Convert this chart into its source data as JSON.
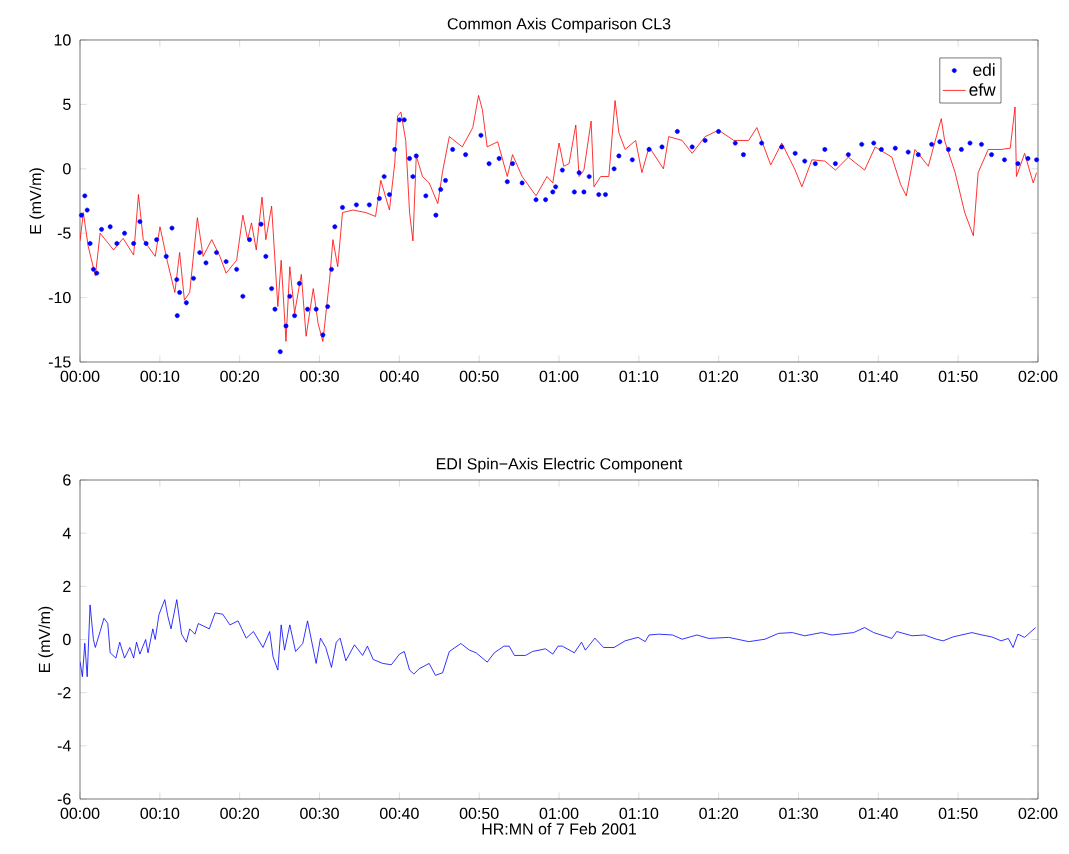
{
  "chart_data": [
    {
      "type": "scatter",
      "title": "Common Axis Comparison   CL3",
      "ylabel": "E  (mV/m)",
      "legend": "top right",
      "line_style": "solid",
      "xlim": [
        0,
        2
      ],
      "ylim": [
        -15,
        10
      ],
      "yticks": [
        -15,
        -10,
        -5,
        0,
        5,
        10
      ],
      "xticks": [
        {
          "value": 0,
          "label": "00:00"
        },
        {
          "value": 0.1667,
          "label": "00:10"
        },
        {
          "value": 0.3333,
          "label": "00:20"
        },
        {
          "value": 0.5,
          "label": "00:30"
        },
        {
          "value": 0.6667,
          "label": "00:40"
        },
        {
          "value": 0.8333,
          "label": "00:50"
        },
        {
          "value": 1,
          "label": "01:00"
        },
        {
          "value": 1.1667,
          "label": "01:10"
        },
        {
          "value": 1.3333,
          "label": "01:20"
        },
        {
          "value": 1.5,
          "label": "01:30"
        },
        {
          "value": 1.6667,
          "label": "01:40"
        },
        {
          "value": 1.8333,
          "label": "01:50"
        },
        {
          "value": 2,
          "label": "02:00"
        }
      ],
      "series": [
        {
          "name": "edi",
          "type": "scatter",
          "marker": "circle",
          "color": "#0000ff",
          "x": [
            0.003,
            0.01,
            0.015,
            0.021,
            0.028,
            0.035,
            0.045,
            0.063,
            0.077,
            0.093,
            0.112,
            0.125,
            0.138,
            0.16,
            0.18,
            0.192,
            0.202,
            0.203,
            0.208,
            0.222,
            0.237,
            0.25,
            0.263,
            0.285,
            0.305,
            0.327,
            0.34,
            0.354,
            0.378,
            0.388,
            0.4,
            0.407,
            0.418,
            0.43,
            0.438,
            0.448,
            0.458,
            0.475,
            0.493,
            0.507,
            0.517,
            0.525,
            0.532,
            0.548,
            0.577,
            0.604,
            0.625,
            0.635,
            0.646,
            0.657,
            0.667,
            0.677,
            0.688,
            0.695,
            0.702,
            0.722,
            0.743,
            0.753,
            0.763,
            0.778,
            0.805,
            0.837,
            0.854,
            0.875,
            0.892,
            0.903,
            0.923,
            0.952,
            0.972,
            0.987,
            0.993,
            1.007,
            1.032,
            1.042,
            1.052,
            1.063,
            1.083,
            1.097,
            1.115,
            1.125,
            1.153,
            1.188,
            1.215,
            1.247,
            1.278,
            1.305,
            1.333,
            1.368,
            1.385,
            1.423,
            1.465,
            1.493,
            1.513,
            1.535,
            1.555,
            1.577,
            1.604,
            1.632,
            1.657,
            1.673,
            1.702,
            1.729,
            1.75,
            1.778,
            1.795,
            1.813,
            1.84,
            1.858,
            1.882,
            1.903,
            1.93,
            1.958,
            1.979,
            1.997
          ],
          "values": [
            -3.6,
            -2.1,
            -3.2,
            -5.8,
            -7.8,
            -8.1,
            -4.7,
            -4.5,
            -5.8,
            -5.0,
            -5.8,
            -4.1,
            -5.8,
            -5.5,
            -6.8,
            -4.6,
            -8.6,
            -11.4,
            -9.6,
            -10.4,
            -8.5,
            -6.5,
            -7.3,
            -6.5,
            -7.2,
            -7.8,
            -9.9,
            -5.5,
            -4.3,
            -6.8,
            -9.3,
            -10.9,
            -14.2,
            -12.2,
            -9.9,
            -11.4,
            -8.9,
            -10.9,
            -10.9,
            -12.9,
            -10.7,
            -7.8,
            -4.5,
            -3.0,
            -2.8,
            -2.8,
            -2.3,
            -0.6,
            -2.0,
            1.5,
            3.8,
            3.8,
            0.8,
            -0.6,
            1.0,
            -2.1,
            -3.6,
            -1.6,
            -0.9,
            1.5,
            1.1,
            2.6,
            0.4,
            0.8,
            -1.0,
            0.4,
            -1.1,
            -2.4,
            -2.4,
            -1.8,
            -1.4,
            -0.1,
            -1.8,
            -0.3,
            -1.8,
            -0.6,
            -2.0,
            -2.0,
            0.0,
            1.0,
            0.7,
            1.5,
            1.7,
            2.9,
            1.7,
            2.2,
            2.9,
            2.0,
            1.1,
            2.0,
            1.7,
            1.2,
            0.6,
            0.4,
            1.5,
            0.4,
            1.1,
            1.9,
            2.0,
            1.5,
            1.6,
            1.3,
            1.1,
            1.9,
            2.1,
            1.5,
            1.5,
            2.0,
            1.9,
            1.1,
            0.7,
            0.4,
            0.8,
            0.7
          ]
        },
        {
          "name": "efw",
          "type": "line",
          "marker": "none",
          "color": "#ff0000",
          "x": [
            0,
            0.007,
            0.017,
            0.032,
            0.042,
            0.07,
            0.09,
            0.112,
            0.122,
            0.132,
            0.157,
            0.167,
            0.183,
            0.198,
            0.208,
            0.218,
            0.229,
            0.245,
            0.257,
            0.275,
            0.292,
            0.305,
            0.327,
            0.34,
            0.35,
            0.358,
            0.368,
            0.38,
            0.388,
            0.4,
            0.413,
            0.42,
            0.43,
            0.438,
            0.448,
            0.462,
            0.472,
            0.487,
            0.497,
            0.507,
            0.521,
            0.528,
            0.538,
            0.548,
            0.57,
            0.597,
            0.617,
            0.628,
            0.646,
            0.657,
            0.663,
            0.67,
            0.68,
            0.688,
            0.695,
            0.702,
            0.715,
            0.729,
            0.747,
            0.757,
            0.771,
            0.798,
            0.82,
            0.832,
            0.84,
            0.85,
            0.872,
            0.892,
            0.903,
            0.923,
            0.952,
            0.975,
            0.987,
            1.0,
            1.01,
            1.021,
            1.035,
            1.042,
            1.052,
            1.067,
            1.073,
            1.087,
            1.104,
            1.117,
            1.125,
            1.138,
            1.16,
            1.173,
            1.188,
            1.218,
            1.229,
            1.257,
            1.278,
            1.305,
            1.333,
            1.365,
            1.396,
            1.413,
            1.442,
            1.465,
            1.493,
            1.507,
            1.528,
            1.555,
            1.577,
            1.604,
            1.638,
            1.66,
            1.695,
            1.713,
            1.725,
            1.743,
            1.771,
            1.798,
            1.805,
            1.827,
            1.847,
            1.865,
            1.875,
            1.896,
            1.923,
            1.942,
            1.952,
            1.955,
            1.972,
            1.99,
            1.997
          ],
          "values": [
            -5.6,
            -3.4,
            -6.0,
            -8.3,
            -5.0,
            -6.3,
            -5.4,
            -6.7,
            -2.0,
            -5.5,
            -6.8,
            -4.5,
            -7.3,
            -9.6,
            -6.5,
            -10.2,
            -9.6,
            -3.8,
            -6.8,
            -5.5,
            -6.8,
            -8.1,
            -7.1,
            -3.6,
            -5.5,
            -4.2,
            -6.3,
            -2.2,
            -5.5,
            -2.9,
            -10.7,
            -7.1,
            -13.4,
            -7.6,
            -11.2,
            -8.2,
            -13.0,
            -9.3,
            -12.0,
            -13.4,
            -8.6,
            -5.5,
            -7.6,
            -3.4,
            -3.2,
            -3.4,
            -3.7,
            -0.9,
            -3.2,
            0.4,
            4.1,
            4.4,
            2.2,
            -3.4,
            -5.6,
            1.0,
            -0.6,
            -1.1,
            -2.7,
            -0.2,
            2.5,
            1.7,
            3.2,
            5.7,
            4.6,
            1.7,
            2.1,
            -0.6,
            1.1,
            -0.6,
            -2.1,
            -0.6,
            -1.1,
            2.0,
            0.2,
            0.4,
            3.4,
            -0.6,
            -0.1,
            3.7,
            -1.4,
            -0.6,
            -0.6,
            5.3,
            2.8,
            1.5,
            2.2,
            -0.3,
            1.7,
            0.0,
            2.5,
            2.2,
            1.2,
            2.5,
            3.0,
            2.2,
            2.2,
            3.2,
            0.3,
            2.0,
            -0.1,
            -1.4,
            0.7,
            0.6,
            -0.1,
            0.9,
            -0.1,
            1.7,
            0.9,
            -1.2,
            -2.1,
            1.5,
            0.2,
            3.9,
            2.2,
            -0.3,
            -3.4,
            -5.2,
            -0.3,
            1.5,
            1.5,
            1.6,
            4.8,
            -0.6,
            1.2,
            -1.1,
            -0.3
          ]
        }
      ]
    },
    {
      "type": "line",
      "title": "EDI Spin−Axis Electric Component",
      "xlabel": "HR:MN of 7 Feb 2001",
      "ylabel": "E  (mV/m)",
      "marker": "none",
      "line_style": "solid",
      "xlim": [
        0,
        2
      ],
      "ylim": [
        -6,
        6
      ],
      "yticks": [
        -6,
        -4,
        -2,
        0,
        2,
        4,
        6
      ],
      "xticks": [
        {
          "value": 0,
          "label": "00:00"
        },
        {
          "value": 0.1667,
          "label": "00:10"
        },
        {
          "value": 0.3333,
          "label": "00:20"
        },
        {
          "value": 0.5,
          "label": "00:30"
        },
        {
          "value": 0.6667,
          "label": "00:40"
        },
        {
          "value": 0.8333,
          "label": "00:50"
        },
        {
          "value": 1,
          "label": "01:00"
        },
        {
          "value": 1.1667,
          "label": "01:10"
        },
        {
          "value": 1.3333,
          "label": "01:20"
        },
        {
          "value": 1.5,
          "label": "01:30"
        },
        {
          "value": 1.6667,
          "label": "01:40"
        },
        {
          "value": 1.8333,
          "label": "01:50"
        },
        {
          "value": 2,
          "label": "02:00"
        }
      ],
      "series": [
        {
          "color": "#0000ff",
          "x": [
            0,
            0.005,
            0.01,
            0.015,
            0.021,
            0.028,
            0.032,
            0.042,
            0.05,
            0.058,
            0.063,
            0.075,
            0.083,
            0.093,
            0.104,
            0.112,
            0.118,
            0.125,
            0.137,
            0.142,
            0.152,
            0.157,
            0.165,
            0.177,
            0.183,
            0.19,
            0.202,
            0.212,
            0.222,
            0.229,
            0.24,
            0.247,
            0.27,
            0.282,
            0.298,
            0.313,
            0.33,
            0.347,
            0.362,
            0.382,
            0.396,
            0.403,
            0.413,
            0.42,
            0.427,
            0.438,
            0.45,
            0.465,
            0.475,
            0.493,
            0.502,
            0.513,
            0.525,
            0.535,
            0.543,
            0.555,
            0.573,
            0.59,
            0.6,
            0.612,
            0.632,
            0.65,
            0.667,
            0.677,
            0.688,
            0.697,
            0.708,
            0.729,
            0.742,
            0.757,
            0.771,
            0.795,
            0.813,
            0.827,
            0.85,
            0.865,
            0.885,
            0.896,
            0.907,
            0.93,
            0.945,
            0.972,
            0.987,
            0.998,
            1.007,
            1.032,
            1.047,
            1.055,
            1.075,
            1.093,
            1.115,
            1.138,
            1.165,
            1.18,
            1.188,
            1.208,
            1.237,
            1.257,
            1.288,
            1.313,
            1.354,
            1.396,
            1.43,
            1.458,
            1.487,
            1.513,
            1.548,
            1.57,
            1.615,
            1.638,
            1.657,
            1.695,
            1.705,
            1.737,
            1.763,
            1.788,
            1.802,
            1.823,
            1.862,
            1.883,
            1.903,
            1.923,
            1.938,
            1.948,
            1.958,
            1.972,
            1.995
          ],
          "values": [
            -0.83,
            -1.4,
            -0.14,
            -1.4,
            1.3,
            0,
            -0.3,
            0.3,
            0.8,
            0.6,
            -0.5,
            -0.7,
            -0.1,
            -0.7,
            -0.3,
            -0.7,
            -0.1,
            -0.55,
            0,
            -0.5,
            0.4,
            0,
            0.95,
            1.5,
            0.9,
            0.4,
            1.5,
            0.2,
            -0.1,
            0.4,
            0.2,
            0.6,
            0.4,
            1.0,
            0.95,
            0.55,
            0.7,
            0.05,
            0.3,
            -0.3,
            0.3,
            -0.65,
            -1.15,
            0.55,
            -0.4,
            0.55,
            -0.45,
            -0.15,
            0.7,
            -0.9,
            0.05,
            -0.3,
            -1.05,
            -0.1,
            0.05,
            -0.8,
            -0.2,
            -0.6,
            -0.25,
            -0.75,
            -0.9,
            -0.95,
            -0.55,
            -0.45,
            -1.15,
            -1.3,
            -1.1,
            -0.9,
            -1.35,
            -1.25,
            -0.45,
            -0.15,
            -0.4,
            -0.5,
            -0.85,
            -0.5,
            -0.25,
            -0.25,
            -0.6,
            -0.6,
            -0.45,
            -0.35,
            -0.55,
            -0.25,
            -0.25,
            -0.5,
            -0.1,
            -0.4,
            0.05,
            -0.3,
            -0.3,
            -0.05,
            0.08,
            -0.08,
            0.17,
            0.2,
            0.17,
            0.01,
            0.17,
            0.04,
            0.08,
            -0.08,
            0.01,
            0.23,
            0.26,
            0.14,
            0.26,
            0.17,
            0.26,
            0.45,
            0.26,
            0.04,
            0.3,
            0.14,
            0.17,
            0.01,
            -0.05,
            0.1,
            0.26,
            0.17,
            0.1,
            -0.05,
            0.04,
            -0.3,
            0.2,
            0.08,
            0.45
          ]
        }
      ]
    }
  ]
}
